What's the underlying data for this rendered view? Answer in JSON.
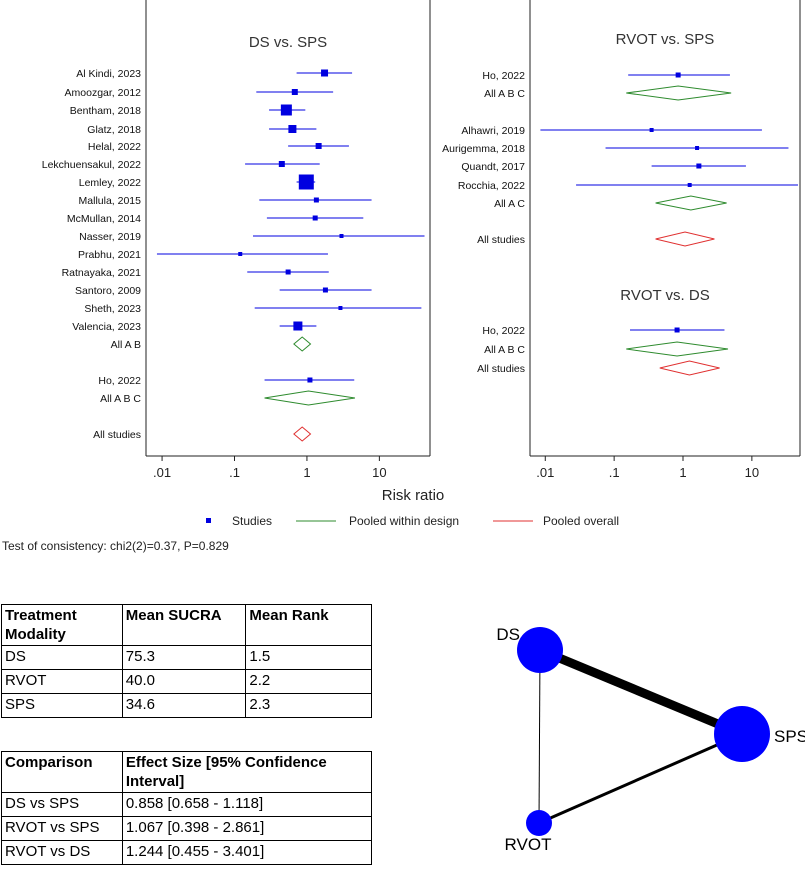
{
  "colors": {
    "study": "#0000e0",
    "design": "#2e8b2e",
    "overall": "#e03030",
    "node": "#0000ff"
  },
  "chart_data": [
    {
      "type": "forest",
      "scale": "log",
      "x_axis": {
        "label": "Risk ratio",
        "ticks": [
          0.01,
          0.1,
          1,
          10
        ],
        "tick_labels": [
          ".01",
          ".1",
          "1",
          "10"
        ],
        "range": [
          0.006,
          50
        ]
      },
      "panels": [
        {
          "title": "DS vs. SPS",
          "rows": [
            {
              "label": "Al Kindi, 2023",
              "kind": "study",
              "est": 1.75,
              "lo": 0.72,
              "hi": 4.2,
              "w": 7
            },
            {
              "label": "Amoozgar, 2012",
              "kind": "study",
              "est": 0.68,
              "lo": 0.2,
              "hi": 2.3,
              "w": 6
            },
            {
              "label": "Bentham, 2018",
              "kind": "study",
              "est": 0.52,
              "lo": 0.3,
              "hi": 0.95,
              "w": 11
            },
            {
              "label": "Glatz, 2018",
              "kind": "study",
              "est": 0.63,
              "lo": 0.3,
              "hi": 1.35,
              "w": 8
            },
            {
              "label": "Helal, 2022",
              "kind": "study",
              "est": 1.45,
              "lo": 0.55,
              "hi": 3.8,
              "w": 6
            },
            {
              "label": "Lekchuensakul, 2022",
              "kind": "study",
              "est": 0.45,
              "lo": 0.14,
              "hi": 1.5,
              "w": 6
            },
            {
              "label": "Lemley, 2022",
              "kind": "study",
              "est": 0.98,
              "lo": 0.72,
              "hi": 1.3,
              "w": 15
            },
            {
              "label": "Mallula, 2015",
              "kind": "study",
              "est": 1.35,
              "lo": 0.22,
              "hi": 7.8,
              "w": 5
            },
            {
              "label": "McMullan, 2014",
              "kind": "study",
              "est": 1.3,
              "lo": 0.28,
              "hi": 6.0,
              "w": 5
            },
            {
              "label": "Nasser, 2019",
              "kind": "study",
              "est": 3.0,
              "lo": 0.18,
              "hi": 42.0,
              "w": 4
            },
            {
              "label": "Prabhu, 2021",
              "kind": "study",
              "est": 0.12,
              "lo": 0.0085,
              "hi": 1.95,
              "w": 4
            },
            {
              "label": "Ratnayaka, 2021",
              "kind": "study",
              "est": 0.55,
              "lo": 0.15,
              "hi": 2.0,
              "w": 5
            },
            {
              "label": "Santoro, 2009",
              "kind": "study",
              "est": 1.8,
              "lo": 0.42,
              "hi": 7.8,
              "w": 5
            },
            {
              "label": "Sheth, 2023",
              "kind": "study",
              "est": 2.9,
              "lo": 0.19,
              "hi": 38.0,
              "w": 4
            },
            {
              "label": "Valencia, 2023",
              "kind": "study",
              "est": 0.75,
              "lo": 0.42,
              "hi": 1.35,
              "w": 9
            },
            {
              "label": "All A B",
              "kind": "design",
              "est": 0.86,
              "lo": 0.66,
              "hi": 1.12
            },
            {
              "label": "",
              "kind": "gap"
            },
            {
              "label": "Ho, 2022",
              "kind": "study",
              "est": 1.1,
              "lo": 0.26,
              "hi": 4.5,
              "w": 5
            },
            {
              "label": "All A B C",
              "kind": "design",
              "est": 1.05,
              "lo": 0.26,
              "hi": 4.6
            },
            {
              "label": "",
              "kind": "gap"
            },
            {
              "label": "All studies",
              "kind": "overall",
              "est": 0.86,
              "lo": 0.66,
              "hi": 1.12
            }
          ]
        },
        {
          "title": "RVOT vs. SPS",
          "rows": [
            {
              "label": "Ho, 2022",
              "kind": "study",
              "est": 0.85,
              "lo": 0.16,
              "hi": 4.8,
              "w": 5
            },
            {
              "label": "All A B C",
              "kind": "design",
              "est": 0.85,
              "lo": 0.15,
              "hi": 5.0
            },
            {
              "label": "",
              "kind": "gap"
            },
            {
              "label": "Alhawri, 2019",
              "kind": "study",
              "est": 0.35,
              "lo": 0.0085,
              "hi": 14.0,
              "w": 4
            },
            {
              "label": "Aurigemma, 2018",
              "kind": "study",
              "est": 1.6,
              "lo": 0.075,
              "hi": 34.0,
              "w": 4
            },
            {
              "label": "Quandt, 2017",
              "kind": "study",
              "est": 1.7,
              "lo": 0.35,
              "hi": 8.2,
              "w": 5
            },
            {
              "label": "Rocchia, 2022",
              "kind": "study",
              "est": 1.25,
              "lo": 0.028,
              "hi": 55.0,
              "w": 4
            },
            {
              "label": "All A C",
              "kind": "design",
              "est": 1.3,
              "lo": 0.4,
              "hi": 4.3
            },
            {
              "label": "",
              "kind": "gap"
            },
            {
              "label": "All studies",
              "kind": "overall",
              "est": 1.07,
              "lo": 0.4,
              "hi": 2.86
            }
          ]
        },
        {
          "title": "RVOT vs. DS",
          "rows": [
            {
              "label": "Ho, 2022",
              "kind": "study",
              "est": 0.82,
              "lo": 0.17,
              "hi": 4.0,
              "w": 5
            },
            {
              "label": "All A B C",
              "kind": "design",
              "est": 0.82,
              "lo": 0.15,
              "hi": 4.5
            },
            {
              "label": "All studies",
              "kind": "overall",
              "est": 1.24,
              "lo": 0.46,
              "hi": 3.4
            }
          ]
        }
      ],
      "legend": [
        {
          "label": "Studies",
          "kind": "study"
        },
        {
          "label": "Pooled within design",
          "kind": "design"
        },
        {
          "label": "Pooled overall",
          "kind": "overall"
        }
      ],
      "note": "Test of consistency: chi2(2)=0.37, P=0.829"
    },
    {
      "type": "network",
      "nodes": [
        {
          "label": "DS",
          "size": 3
        },
        {
          "label": "SPS",
          "size": 4
        },
        {
          "label": "RVOT",
          "size": 1
        }
      ],
      "edges": [
        {
          "from": "DS",
          "to": "SPS",
          "weight": 15
        },
        {
          "from": "SPS",
          "to": "RVOT",
          "weight": 5
        },
        {
          "from": "DS",
          "to": "RVOT",
          "weight": 1
        }
      ]
    }
  ],
  "table1": {
    "headers": [
      "Treatment Modality",
      "Mean SUCRA",
      "Mean Rank"
    ],
    "rows": [
      [
        "DS",
        "75.3",
        "1.5"
      ],
      [
        "RVOT",
        "40.0",
        "2.2"
      ],
      [
        "SPS",
        "34.6",
        "2.3"
      ]
    ]
  },
  "table2": {
    "headers": [
      "Comparison",
      "Effect Size [95% Confidence Interval]"
    ],
    "rows": [
      [
        "DS vs SPS",
        "0.858 [0.658 - 1.118]"
      ],
      [
        "RVOT vs SPS",
        "1.067 [0.398 - 2.861]"
      ],
      [
        "RVOT vs DS",
        "1.244 [0.455 - 3.401]"
      ]
    ]
  }
}
